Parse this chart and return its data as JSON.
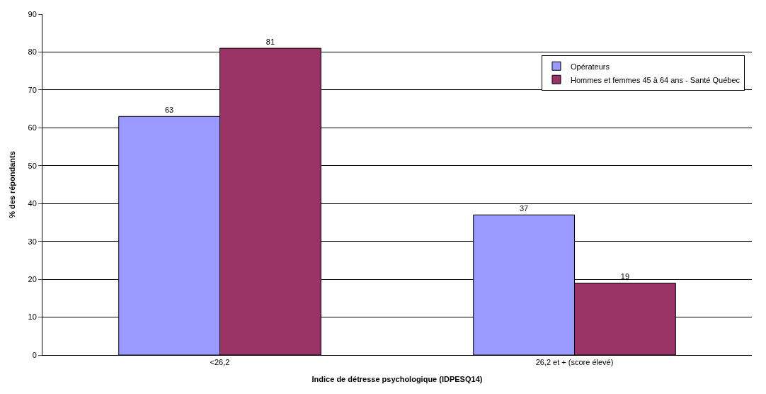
{
  "chart_data": {
    "type": "bar",
    "xlabel": "Indice de détresse psychologique (IDPESQ14)",
    "ylabel": "% des répondants",
    "categories": [
      "<26,2",
      "26,2 et + (score élevé)"
    ],
    "series": [
      {
        "name": "Opérateurs",
        "color": "#9999ff",
        "values": [
          63,
          37
        ]
      },
      {
        "name": "Hommes et femmes 45 à 64 ans - Santé Québec",
        "color": "#993366",
        "values": [
          81,
          19
        ]
      }
    ],
    "ylim": [
      0,
      90
    ],
    "yticks": [
      0,
      10,
      20,
      30,
      40,
      50,
      60,
      70,
      80,
      90
    ],
    "grid": "y",
    "legend": "top right",
    "data_labels": true
  }
}
